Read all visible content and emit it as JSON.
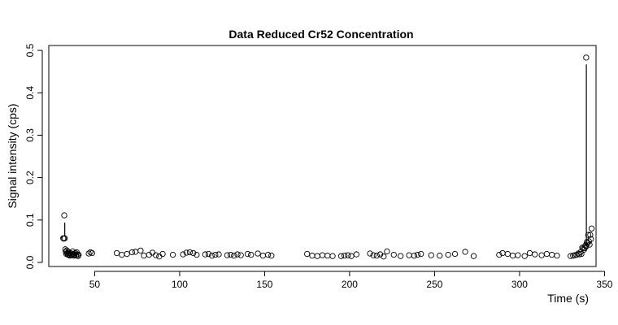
{
  "chart_data": {
    "type": "scatter",
    "title": "Data Reduced Cr52 Concentration",
    "xlabel": "Time (s)",
    "ylabel": "Signal intensity (cps)",
    "xlim": [
      23,
      345
    ],
    "ylim": [
      0,
      0.5
    ],
    "xticks": [
      50,
      100,
      150,
      200,
      250,
      300,
      350
    ],
    "yticks": [
      0.0,
      0.1,
      0.2,
      0.3,
      0.4,
      0.5
    ],
    "xtick_labels": [
      "50",
      "100",
      "150",
      "200",
      "250",
      "300",
      "350"
    ],
    "ytick_labels": [
      "0.0",
      "0.1",
      "0.2",
      "0.3",
      "0.4",
      "0.5"
    ],
    "grid": false,
    "legend": "none",
    "series": [
      {
        "x": [
          31.5,
          31.8,
          32.1,
          32.4,
          32.7,
          33.0,
          33.3,
          33.6,
          33.9,
          34.2,
          34.5,
          34.8,
          35.1,
          35.4,
          35.8,
          36.2,
          36.6,
          37.0,
          37.4,
          37.8,
          38.2,
          38.6,
          39.0,
          39.4,
          39.8,
          40.2,
          40.6,
          46.5,
          47.5,
          48.5,
          63,
          66,
          69,
          72,
          74,
          77,
          79,
          82,
          84,
          86,
          88,
          90,
          96,
          102,
          104,
          106,
          108,
          110,
          115,
          117,
          119,
          121,
          123,
          128,
          130,
          132,
          134,
          136,
          140,
          142,
          146,
          149,
          152,
          154,
          175,
          178,
          181,
          184,
          187,
          190,
          195,
          197,
          199,
          201,
          204,
          212,
          214,
          216,
          218,
          220,
          222,
          226,
          230,
          235,
          238,
          240,
          242,
          248,
          253,
          258,
          262,
          268,
          273,
          288,
          290,
          293,
          296,
          299,
          303,
          306,
          309,
          313,
          316,
          319,
          322,
          330,
          331.5,
          332.5,
          333.5,
          334.5,
          335.2,
          335.8,
          336.4,
          336.9,
          337.4,
          337.9,
          338.4,
          338.8,
          339.2,
          339.6,
          340.0,
          340.4,
          340.8,
          341.2,
          341.6,
          342.0,
          342.4,
          339.2
        ],
        "y": [
          0.057,
          0.056,
          0.111,
          0.057,
          0.031,
          0.025,
          0.02,
          0.028,
          0.022,
          0.018,
          0.025,
          0.021,
          0.018,
          0.016,
          0.022,
          0.019,
          0.017,
          0.026,
          0.02,
          0.016,
          0.018,
          0.022,
          0.017,
          0.024,
          0.019,
          0.015,
          0.018,
          0.021,
          0.024,
          0.022,
          0.022,
          0.018,
          0.02,
          0.024,
          0.025,
          0.028,
          0.016,
          0.018,
          0.023,
          0.017,
          0.014,
          0.02,
          0.018,
          0.019,
          0.023,
          0.024,
          0.022,
          0.018,
          0.019,
          0.02,
          0.016,
          0.018,
          0.019,
          0.017,
          0.018,
          0.016,
          0.019,
          0.017,
          0.02,
          0.018,
          0.021,
          0.016,
          0.018,
          0.016,
          0.02,
          0.016,
          0.015,
          0.017,
          0.016,
          0.015,
          0.015,
          0.016,
          0.017,
          0.015,
          0.019,
          0.021,
          0.017,
          0.016,
          0.019,
          0.014,
          0.026,
          0.018,
          0.015,
          0.017,
          0.016,
          0.018,
          0.02,
          0.017,
          0.016,
          0.018,
          0.02,
          0.025,
          0.015,
          0.018,
          0.022,
          0.02,
          0.016,
          0.017,
          0.015,
          0.022,
          0.019,
          0.017,
          0.02,
          0.018,
          0.016,
          0.015,
          0.016,
          0.017,
          0.018,
          0.021,
          0.019,
          0.024,
          0.02,
          0.035,
          0.033,
          0.03,
          0.034,
          0.04,
          0.038,
          0.048,
          0.045,
          0.065,
          0.05,
          0.042,
          0.065,
          0.055,
          0.08,
          0.483
        ],
        "lines": [
          {
            "x": [
              32.4,
              32.4
            ],
            "y": [
              0.062,
              0.094
            ]
          },
          {
            "x": [
              339.3,
              339.3
            ],
            "y": [
              0.04,
              0.467
            ]
          }
        ]
      }
    ]
  }
}
